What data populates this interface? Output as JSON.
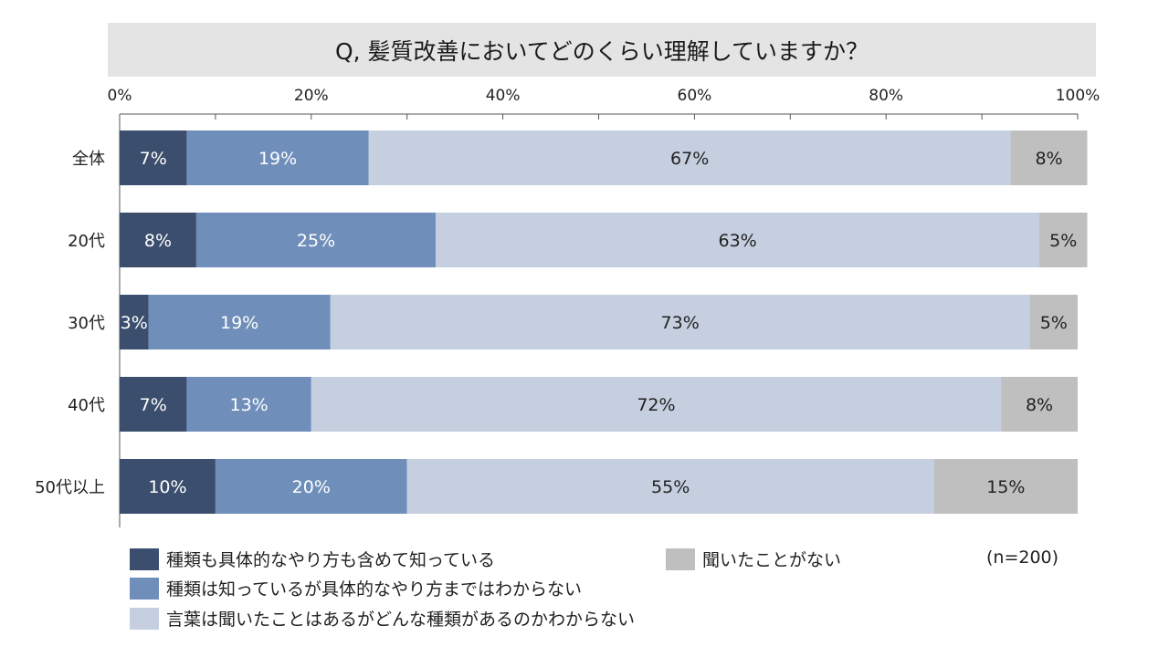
{
  "chart_data": {
    "type": "bar",
    "orientation": "horizontal",
    "stacked": true,
    "title": "Q, 髪質改善においてどのくらい理解していますか？",
    "xlim": [
      0,
      100
    ],
    "x_ticks": [
      "0%",
      "20%",
      "40%",
      "60%",
      "80%",
      "100%"
    ],
    "categories": [
      "全体",
      "20代",
      "30代",
      "40代",
      "50代以上"
    ],
    "series": [
      {
        "name": "種類も具体的なやり方も含めて知っている",
        "color": "#3b4e6e",
        "label_color": "#ffffff",
        "values": [
          7,
          8,
          3,
          7,
          10
        ],
        "labels": [
          "7%",
          "8%",
          "3%",
          "7%",
          "10%"
        ]
      },
      {
        "name": "種類は知っているが具体的なやり方まではわからない",
        "color": "#6f8fba",
        "label_color": "#ffffff",
        "values": [
          19,
          25,
          19,
          13,
          20
        ],
        "labels": [
          "19%",
          "25%",
          "19%",
          "13%",
          "20%"
        ]
      },
      {
        "name": "言葉は聞いたことはあるがどんな種類があるのかわからない",
        "color": "#c5cfe0",
        "label_color": "#222222",
        "values": [
          67,
          63,
          73,
          72,
          55
        ],
        "labels": [
          "67%",
          "63%",
          "73%",
          "72%",
          "55%"
        ]
      },
      {
        "name": "聞いたことがない",
        "color": "#bfbfbf",
        "label_color": "#222222",
        "values": [
          8,
          5,
          5,
          8,
          15
        ],
        "labels": [
          "8%",
          "5%",
          "5%",
          "8%",
          "15%"
        ]
      }
    ],
    "grid": false,
    "legend_position": "bottom",
    "annotation": "(n=200)"
  }
}
